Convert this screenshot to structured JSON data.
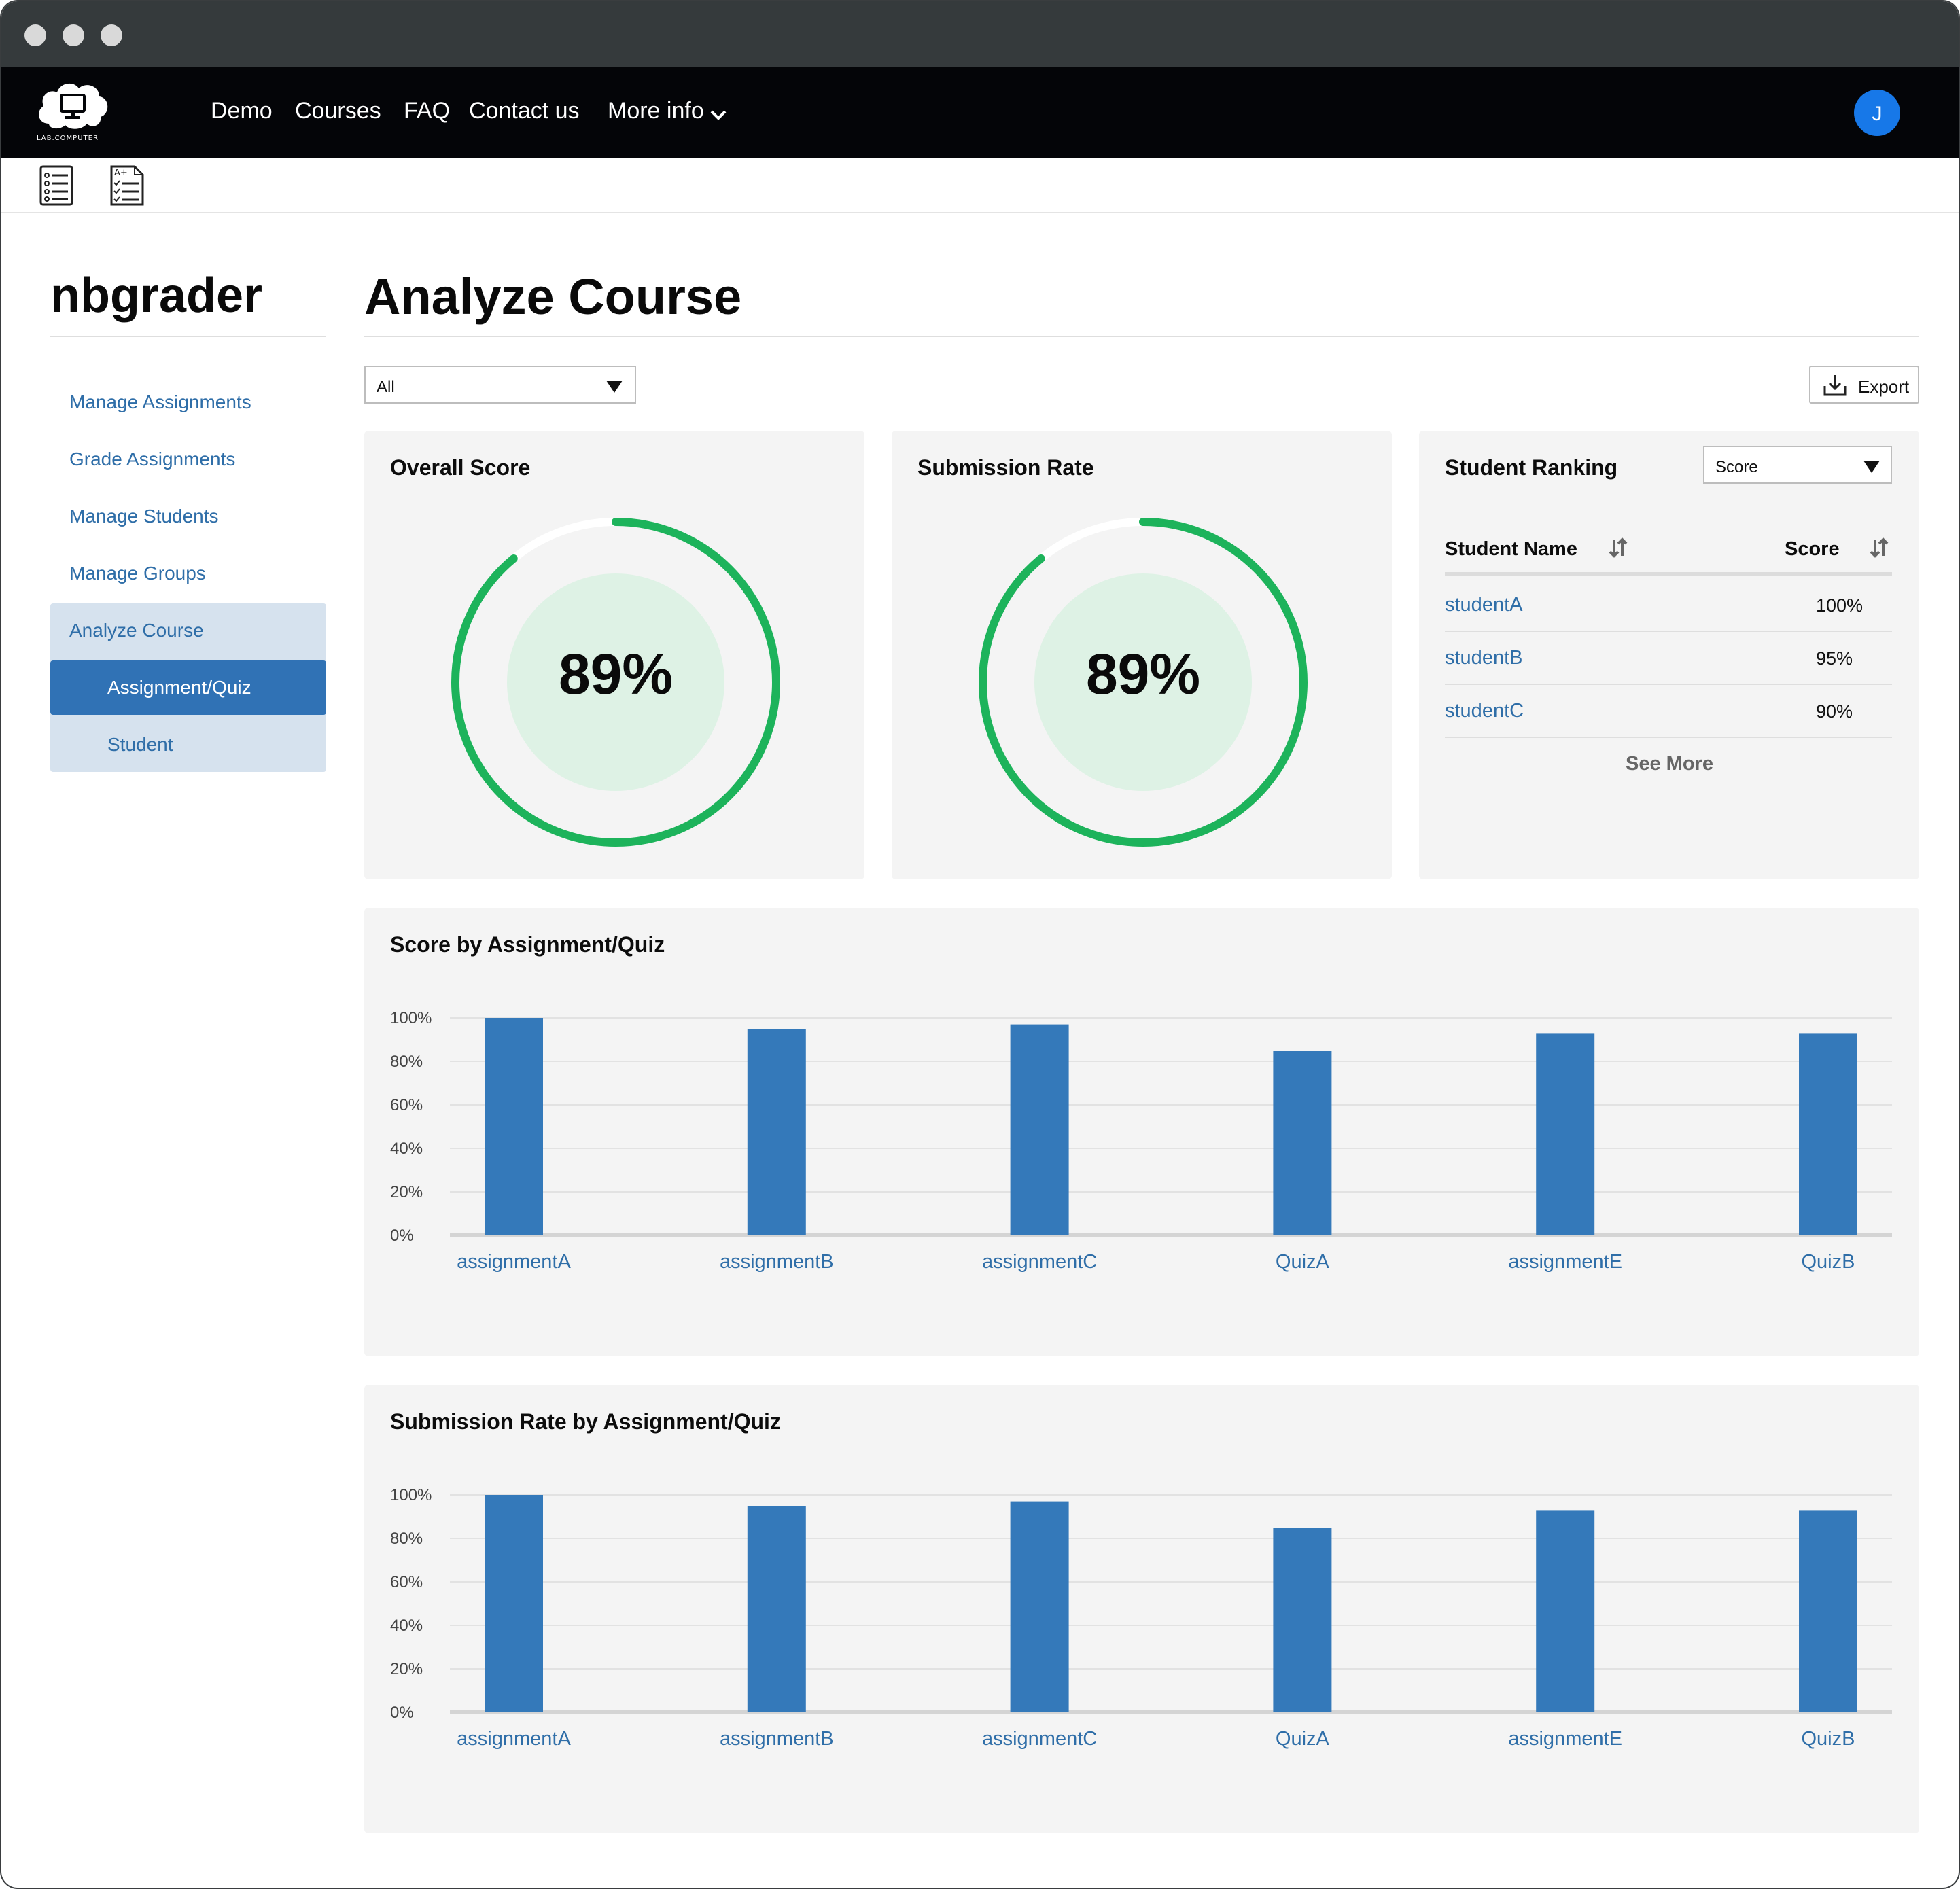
{
  "app": {
    "logo_text": "LAB.COMPUTER",
    "nav": [
      "Demo",
      "Courses",
      "FAQ",
      "Contact us",
      "More info"
    ],
    "avatar_initial": "J"
  },
  "sidebar": {
    "title": "nbgrader",
    "items": [
      {
        "label": "Manage Assignments"
      },
      {
        "label": "Grade Assignments"
      },
      {
        "label": "Manage Students"
      },
      {
        "label": "Manage Groups"
      },
      {
        "label": "Analyze Course"
      },
      {
        "label": "Assignment/Quiz"
      },
      {
        "label": "Student"
      }
    ]
  },
  "main": {
    "title": "Analyze Course",
    "filter_value": "All",
    "export_label": "Export"
  },
  "overall_score": {
    "title": "Overall Score",
    "value_text": "89%",
    "value": 89
  },
  "submission_rate": {
    "title": "Submission Rate",
    "value_text": "89%",
    "value": 89
  },
  "ranking": {
    "title": "Student Ranking",
    "sort_value": "Score",
    "col_name": "Student Name",
    "col_score": "Score",
    "rows": [
      {
        "name": "studentA",
        "score": "100%"
      },
      {
        "name": "studentB",
        "score": "95%"
      },
      {
        "name": "studentC",
        "score": "90%"
      }
    ],
    "see_more": "See More"
  },
  "colors": {
    "accent": "#3072b5",
    "link": "#2f6ea8",
    "gauge": "#1db35b",
    "gauge_inner": "#def2e5",
    "bar": "#3479ba"
  },
  "chart_data": [
    {
      "type": "bar",
      "title": "Score by Assignment/Quiz",
      "categories": [
        "assignmentA",
        "assignmentB",
        "assignmentC",
        "QuizA",
        "assignmentE",
        "QuizB"
      ],
      "values": [
        100,
        95,
        97,
        85,
        93,
        93
      ],
      "yticks": [
        "0%",
        "20%",
        "40%",
        "60%",
        "80%",
        "100%"
      ],
      "ylim": [
        0,
        100
      ],
      "xlabel": "",
      "ylabel": ""
    },
    {
      "type": "bar",
      "title": "Submission Rate by Assignment/Quiz",
      "categories": [
        "assignmentA",
        "assignmentB",
        "assignmentC",
        "QuizA",
        "assignmentE",
        "QuizB"
      ],
      "values": [
        100,
        95,
        97,
        85,
        93,
        93
      ],
      "yticks": [
        "0%",
        "20%",
        "40%",
        "60%",
        "80%",
        "100%"
      ],
      "ylim": [
        0,
        100
      ],
      "xlabel": "",
      "ylabel": ""
    }
  ]
}
